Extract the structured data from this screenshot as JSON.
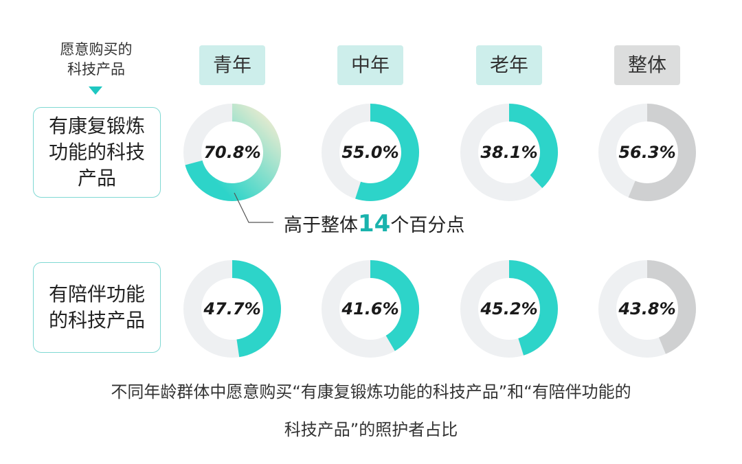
{
  "corner_label": {
    "line1": "愿意购买的",
    "line2": "科技产品"
  },
  "columns": [
    {
      "label": "青年",
      "bg": "#cdeeeb"
    },
    {
      "label": "中年",
      "bg": "#cdeeeb"
    },
    {
      "label": "老年",
      "bg": "#cdeeeb"
    },
    {
      "label": "整体",
      "bg": "#dcdddd"
    }
  ],
  "rows": [
    {
      "label": "有康复锻炼功能的科技产品"
    },
    {
      "label": "有陪伴功能的科技产品"
    }
  ],
  "callout": {
    "prefix": "高于整体",
    "value": "14",
    "suffix": "个百分点"
  },
  "caption": {
    "line1": "不同年龄群体中愿意购买“有康复锻炼功能的科技产品”和“有陪伴功能的",
    "line2": "科技产品”的照护者占比"
  },
  "colors": {
    "accent": "#2dd4c9",
    "overall": "#cfd0d1",
    "track": "#eef0f2",
    "gradient_end": "#f1ecd0"
  },
  "chart_data": {
    "type": "donut",
    "categories": [
      "青年",
      "中年",
      "老年",
      "整体"
    ],
    "series": [
      {
        "name": "有康复锻炼功能的科技产品",
        "values": [
          70.8,
          55.0,
          38.1,
          56.3
        ],
        "labels": [
          "70.8%",
          "55.0%",
          "38.1%",
          "56.3%"
        ]
      },
      {
        "name": "有陪伴功能的科技产品",
        "values": [
          47.7,
          41.6,
          45.2,
          43.8
        ],
        "labels": [
          "47.7%",
          "41.6%",
          "45.2%",
          "43.8%"
        ]
      }
    ],
    "unit": "%"
  }
}
